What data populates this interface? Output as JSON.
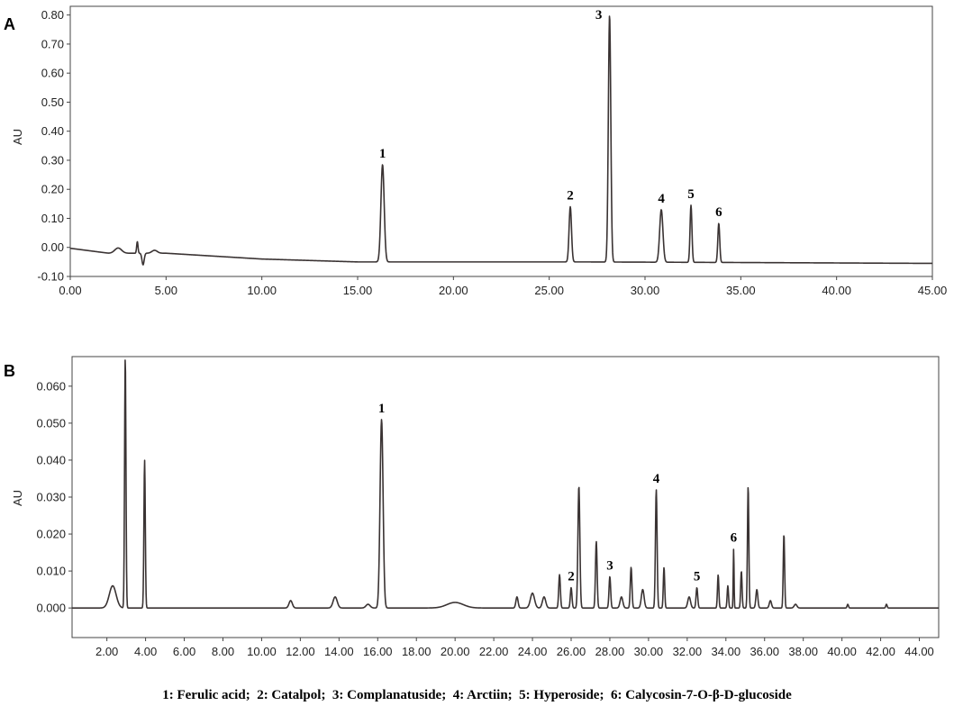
{
  "chart_data": [
    {
      "type": "line",
      "panel_label": "A",
      "ylabel": "AU",
      "xlim": [
        0,
        45
      ],
      "ylim": [
        -0.1,
        0.83
      ],
      "x_ticks": [
        "0.00",
        "5.00",
        "10.00",
        "15.00",
        "20.00",
        "25.00",
        "30.00",
        "35.00",
        "40.00",
        "45.00"
      ],
      "y_ticks": [
        "-0.10",
        "0.00",
        "0.10",
        "0.20",
        "0.30",
        "0.40",
        "0.50",
        "0.60",
        "0.70",
        "0.80"
      ],
      "baseline": [
        [
          0,
          -0.003
        ],
        [
          2,
          -0.02
        ],
        [
          5,
          -0.02
        ],
        [
          10,
          -0.04
        ],
        [
          15,
          -0.05
        ],
        [
          27,
          -0.05
        ],
        [
          35,
          -0.052
        ],
        [
          45,
          -0.055
        ]
      ],
      "features": [
        {
          "x": 2.5,
          "h": 0.018,
          "w": 0.25
        },
        {
          "x": 3.5,
          "h": 0.04,
          "w": 0.05
        },
        {
          "x": 3.8,
          "h": -0.04,
          "w": 0.08
        },
        {
          "x": 4.4,
          "h": 0.01,
          "w": 0.2
        }
      ],
      "peaks": [
        {
          "label": "1",
          "x": 16.3,
          "y": 0.285,
          "w": 0.12
        },
        {
          "label": "2",
          "x": 26.1,
          "y": 0.14,
          "w": 0.09
        },
        {
          "label": "3",
          "x": 28.15,
          "y": 0.8,
          "w": 0.09
        },
        {
          "label": "4",
          "x": 30.85,
          "y": 0.13,
          "w": 0.12
        },
        {
          "label": "5",
          "x": 32.4,
          "y": 0.145,
          "w": 0.07
        },
        {
          "label": "6",
          "x": 33.85,
          "y": 0.083,
          "w": 0.07
        }
      ]
    },
    {
      "type": "line",
      "panel_label": "B",
      "ylabel": "AU",
      "xlim": [
        0.2,
        45
      ],
      "ylim": [
        -0.008,
        0.068
      ],
      "x_ticks": [
        "2.00",
        "4.00",
        "6.00",
        "8.00",
        "10.00",
        "12.00",
        "14.00",
        "16.00",
        "18.00",
        "20.00",
        "22.00",
        "24.00",
        "26.00",
        "28.00",
        "30.00",
        "32.00",
        "34.00",
        "36.00",
        "38.00",
        "40.00",
        "42.00",
        "44.00"
      ],
      "y_ticks": [
        "0.000",
        "0.010",
        "0.020",
        "0.030",
        "0.040",
        "0.050",
        "0.060"
      ],
      "baseline": [
        [
          0.2,
          0
        ],
        [
          45,
          0
        ]
      ],
      "features": [
        {
          "x": 2.3,
          "h": 0.006,
          "w": 0.25
        },
        {
          "x": 2.95,
          "h": 0.068,
          "w": 0.05
        },
        {
          "x": 3.95,
          "h": 0.04,
          "w": 0.05
        },
        {
          "x": 11.5,
          "h": 0.002,
          "w": 0.12
        },
        {
          "x": 13.8,
          "h": 0.003,
          "w": 0.15
        },
        {
          "x": 15.5,
          "h": 0.001,
          "w": 0.15
        },
        {
          "x": 20,
          "h": 0.0015,
          "w": 0.6
        },
        {
          "x": 23.2,
          "h": 0.003,
          "w": 0.08
        },
        {
          "x": 24,
          "h": 0.004,
          "w": 0.15
        },
        {
          "x": 24.6,
          "h": 0.003,
          "w": 0.12
        },
        {
          "x": 25.4,
          "h": 0.009,
          "w": 0.06
        },
        {
          "x": 26.4,
          "h": 0.033,
          "w": 0.07
        },
        {
          "x": 27.3,
          "h": 0.018,
          "w": 0.06
        },
        {
          "x": 28.6,
          "h": 0.003,
          "w": 0.1
        },
        {
          "x": 29.1,
          "h": 0.011,
          "w": 0.06
        },
        {
          "x": 29.7,
          "h": 0.005,
          "w": 0.1
        },
        {
          "x": 30.8,
          "h": 0.011,
          "w": 0.05
        },
        {
          "x": 32.1,
          "h": 0.003,
          "w": 0.1
        },
        {
          "x": 33.6,
          "h": 0.009,
          "w": 0.05
        },
        {
          "x": 34.1,
          "h": 0.006,
          "w": 0.05
        },
        {
          "x": 34.8,
          "h": 0.01,
          "w": 0.05
        },
        {
          "x": 35.15,
          "h": 0.033,
          "w": 0.05
        },
        {
          "x": 35.6,
          "h": 0.005,
          "w": 0.07
        },
        {
          "x": 36.3,
          "h": 0.002,
          "w": 0.08
        },
        {
          "x": 37.0,
          "h": 0.02,
          "w": 0.05
        },
        {
          "x": 37.6,
          "h": 0.001,
          "w": 0.1
        },
        {
          "x": 40.3,
          "h": 0.001,
          "w": 0.05
        },
        {
          "x": 42.3,
          "h": 0.001,
          "w": 0.05
        }
      ],
      "peaks": [
        {
          "label": "1",
          "x": 16.2,
          "y": 0.051,
          "w": 0.11
        },
        {
          "label": "2",
          "x": 26.0,
          "y": 0.0055,
          "w": 0.06
        },
        {
          "label": "3",
          "x": 28.0,
          "y": 0.0085,
          "w": 0.06
        },
        {
          "label": "4",
          "x": 30.4,
          "y": 0.032,
          "w": 0.06
        },
        {
          "label": "5",
          "x": 32.5,
          "y": 0.0055,
          "w": 0.06
        },
        {
          "label": "6",
          "x": 34.4,
          "y": 0.016,
          "w": 0.03
        }
      ]
    }
  ],
  "legend_text": "1: Ferulic acid;  2: Catalpol;  3: Complanatuside;  4: Arctiin;  5: Hyperoside;  6: Calycosin-7-O-β-D-glucoside"
}
